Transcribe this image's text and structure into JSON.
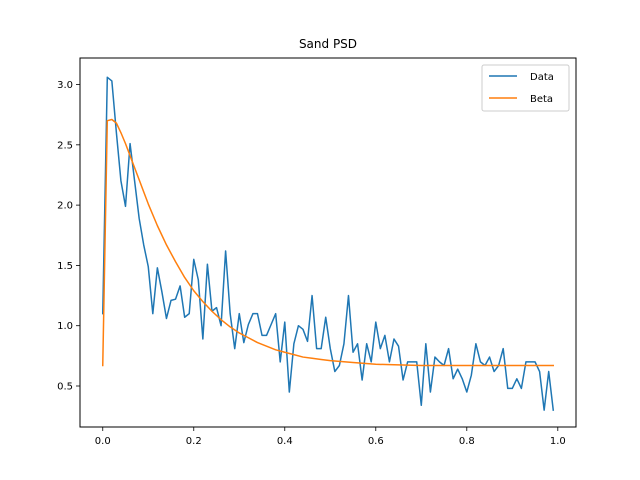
{
  "chart_data": {
    "type": "line",
    "title": "Sand PSD",
    "xlabel": "",
    "ylabel": "",
    "xlim": [
      -0.05,
      1.04
    ],
    "ylim": [
      0.16,
      3.22
    ],
    "xticks": [
      0.0,
      0.2,
      0.4,
      0.6,
      0.8,
      1.0
    ],
    "xtick_labels": [
      "0.0",
      "0.2",
      "0.4",
      "0.6",
      "0.8",
      "1.0"
    ],
    "yticks": [
      0.5,
      1.0,
      1.5,
      2.0,
      2.5,
      3.0
    ],
    "ytick_labels": [
      "0.5",
      "1.0",
      "1.5",
      "2.0",
      "2.5",
      "3.0"
    ],
    "grid": false,
    "legend_position": "top-right",
    "series": [
      {
        "name": "Data",
        "color": "#1f77b4",
        "x": [
          0.0,
          0.01,
          0.02,
          0.03,
          0.04,
          0.05,
          0.06,
          0.07,
          0.08,
          0.09,
          0.1,
          0.11,
          0.12,
          0.13,
          0.14,
          0.15,
          0.16,
          0.17,
          0.18,
          0.19,
          0.2,
          0.21,
          0.22,
          0.23,
          0.24,
          0.25,
          0.26,
          0.27,
          0.28,
          0.29,
          0.3,
          0.31,
          0.32,
          0.33,
          0.34,
          0.35,
          0.36,
          0.37,
          0.38,
          0.39,
          0.4,
          0.41,
          0.42,
          0.43,
          0.44,
          0.45,
          0.46,
          0.47,
          0.48,
          0.49,
          0.5,
          0.51,
          0.52,
          0.53,
          0.54,
          0.55,
          0.56,
          0.57,
          0.58,
          0.59,
          0.6,
          0.61,
          0.62,
          0.63,
          0.64,
          0.65,
          0.66,
          0.67,
          0.68,
          0.69,
          0.7,
          0.71,
          0.72,
          0.73,
          0.74,
          0.75,
          0.76,
          0.77,
          0.78,
          0.79,
          0.8,
          0.81,
          0.82,
          0.83,
          0.84,
          0.85,
          0.86,
          0.87,
          0.88,
          0.89,
          0.9,
          0.91,
          0.92,
          0.93,
          0.94,
          0.95,
          0.96,
          0.97,
          0.98,
          0.99
        ],
        "y": [
          1.1,
          3.06,
          3.03,
          2.6,
          2.2,
          1.99,
          2.51,
          2.2,
          1.89,
          1.67,
          1.49,
          1.1,
          1.48,
          1.28,
          1.06,
          1.21,
          1.22,
          1.33,
          1.07,
          1.1,
          1.55,
          1.38,
          0.89,
          1.51,
          1.12,
          1.15,
          1.0,
          1.62,
          1.1,
          0.81,
          1.1,
          0.86,
          1.01,
          1.1,
          1.1,
          0.92,
          0.92,
          1.01,
          1.1,
          0.7,
          1.03,
          0.45,
          0.85,
          1.0,
          0.97,
          0.87,
          1.25,
          0.81,
          0.81,
          1.07,
          0.81,
          0.62,
          0.67,
          0.85,
          1.25,
          0.78,
          0.85,
          0.55,
          0.85,
          0.7,
          1.03,
          0.81,
          0.92,
          0.7,
          0.89,
          0.83,
          0.55,
          0.7,
          0.7,
          0.7,
          0.34,
          0.85,
          0.45,
          0.74,
          0.7,
          0.67,
          0.81,
          0.56,
          0.64,
          0.56,
          0.45,
          0.59,
          0.85,
          0.7,
          0.67,
          0.74,
          0.62,
          0.67,
          0.81,
          0.48,
          0.48,
          0.56,
          0.48,
          0.7,
          0.7,
          0.7,
          0.62,
          0.3,
          0.62,
          0.3
        ]
      },
      {
        "name": "Beta",
        "color": "#ff7f0e",
        "x": [
          0.0,
          0.01,
          0.02,
          0.03,
          0.04,
          0.05,
          0.06,
          0.07,
          0.08,
          0.09,
          0.1,
          0.12,
          0.14,
          0.16,
          0.18,
          0.2,
          0.22,
          0.24,
          0.26,
          0.28,
          0.3,
          0.32,
          0.34,
          0.36,
          0.38,
          0.4,
          0.42,
          0.44,
          0.46,
          0.48,
          0.5,
          0.55,
          0.6,
          0.65,
          0.7,
          0.75,
          0.8,
          0.85,
          0.9,
          0.95,
          0.99
        ],
        "y": [
          0.67,
          2.7,
          2.71,
          2.68,
          2.6,
          2.51,
          2.41,
          2.31,
          2.21,
          2.11,
          2.01,
          1.83,
          1.67,
          1.53,
          1.4,
          1.29,
          1.2,
          1.12,
          1.05,
          0.99,
          0.94,
          0.9,
          0.86,
          0.83,
          0.8,
          0.78,
          0.76,
          0.74,
          0.73,
          0.72,
          0.71,
          0.695,
          0.68,
          0.675,
          0.67,
          0.67,
          0.67,
          0.67,
          0.67,
          0.67,
          0.67
        ]
      }
    ]
  }
}
